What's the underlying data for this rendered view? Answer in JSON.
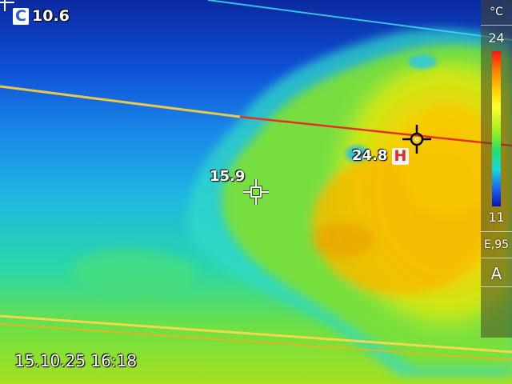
{
  "readouts": {
    "center_mode_letter": "C",
    "center_value": "10.6",
    "cold_spot_value": "15.9",
    "hot_spot_value": "24.8",
    "hot_marker_letter": "H"
  },
  "scale": {
    "unit": "°C",
    "max": "24",
    "min": "11",
    "emissivity": "E,95",
    "mode": "A"
  },
  "timestamp": "15.10.25 16:18",
  "palette": {
    "hot": "#ff1010",
    "warm": "#ffd400",
    "mid": "#9aef20",
    "cool": "#18d8d8",
    "cold": "#1010b0"
  }
}
